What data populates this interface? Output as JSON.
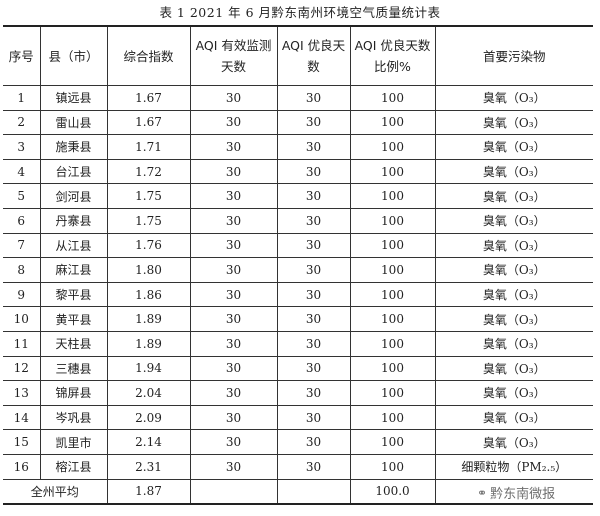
{
  "title": "表 1   2021 年 6 月黔东南州环境空气质量统计表",
  "headers": [
    "序号",
    "县（市）",
    "综合指数",
    "AQI 有效监测天数",
    "AQI 优良天数",
    "AQI 优良天数比例%",
    "首要污染物"
  ],
  "rows": [
    [
      "1",
      "镇远县",
      "1.67",
      "30",
      "30",
      "100",
      "臭氧（O₃）"
    ],
    [
      "2",
      "雷山县",
      "1.67",
      "30",
      "30",
      "100",
      "臭氧（O₃）"
    ],
    [
      "3",
      "施秉县",
      "1.71",
      "30",
      "30",
      "100",
      "臭氧（O₃）"
    ],
    [
      "4",
      "台江县",
      "1.72",
      "30",
      "30",
      "100",
      "臭氧（O₃）"
    ],
    [
      "5",
      "剑河县",
      "1.75",
      "30",
      "30",
      "100",
      "臭氧（O₃）"
    ],
    [
      "6",
      "丹寨县",
      "1.75",
      "30",
      "30",
      "100",
      "臭氧（O₃）"
    ],
    [
      "7",
      "从江县",
      "1.76",
      "30",
      "30",
      "100",
      "臭氧（O₃）"
    ],
    [
      "8",
      "麻江县",
      "1.80",
      "30",
      "30",
      "100",
      "臭氧（O₃）"
    ],
    [
      "9",
      "黎平县",
      "1.86",
      "30",
      "30",
      "100",
      "臭氧（O₃）"
    ],
    [
      "10",
      "黄平县",
      "1.89",
      "30",
      "30",
      "100",
      "臭氧（O₃）"
    ],
    [
      "11",
      "天柱县",
      "1.89",
      "30",
      "30",
      "100",
      "臭氧（O₃）"
    ],
    [
      "12",
      "三穗县",
      "1.94",
      "30",
      "30",
      "100",
      "臭氧（O₃）"
    ],
    [
      "13",
      "锦屏县",
      "2.04",
      "30",
      "30",
      "100",
      "臭氧（O₃）"
    ],
    [
      "14",
      "岑巩县",
      "2.09",
      "30",
      "30",
      "100",
      "臭氧（O₃）"
    ],
    [
      "15",
      "凯里市",
      "2.14",
      "30",
      "30",
      "100",
      "臭氧（O₃）"
    ],
    [
      "16",
      "榕江县",
      "2.31",
      "30",
      "30",
      "100",
      "细颗粒物（PM₂.₅）"
    ]
  ],
  "average": {
    "label": "全州平均",
    "index": "1.87",
    "ratio": "100.0"
  },
  "watermark": {
    "text": "黔东南微报",
    "icon": "wechat-icon"
  }
}
